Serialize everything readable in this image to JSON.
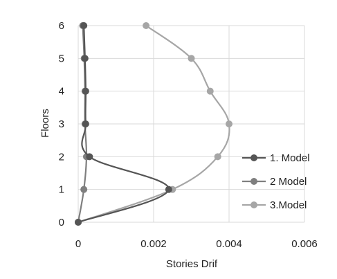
{
  "chart_data": {
    "type": "line",
    "title": "",
    "xlabel": "Stories Drif",
    "ylabel": "Floors",
    "xlim": [
      0,
      0.006
    ],
    "ylim": [
      0,
      6
    ],
    "x_ticks": [
      "0",
      "0.002",
      "0.004",
      "0.006"
    ],
    "y_ticks": [
      "0",
      "1",
      "2",
      "3",
      "4",
      "5",
      "6"
    ],
    "grid": true,
    "legend_position": "right",
    "orientation": "drift-on-x, floor-on-y",
    "series": [
      {
        "name": "1. Model",
        "color": "#555555",
        "points": [
          [
            0.0,
            0
          ],
          [
            0.0024,
            1
          ],
          [
            0.0003,
            2
          ],
          [
            0.0002,
            3
          ],
          [
            0.0002,
            4
          ],
          [
            0.00018,
            5
          ],
          [
            0.00015,
            6
          ]
        ]
      },
      {
        "name": "2 Model",
        "color": "#7f7f7f",
        "points": [
          [
            0.0,
            0
          ],
          [
            0.00015,
            1
          ],
          [
            0.00022,
            2
          ],
          [
            0.00018,
            3
          ],
          [
            0.00018,
            4
          ],
          [
            0.00016,
            5
          ],
          [
            0.00012,
            6
          ]
        ]
      },
      {
        "name": "3.Model",
        "color": "#a6a6a6",
        "points": [
          [
            0.0,
            0
          ],
          [
            0.0025,
            1
          ],
          [
            0.0037,
            2
          ],
          [
            0.004,
            3
          ],
          [
            0.0035,
            4
          ],
          [
            0.003,
            5
          ],
          [
            0.0018,
            6
          ]
        ]
      }
    ]
  }
}
